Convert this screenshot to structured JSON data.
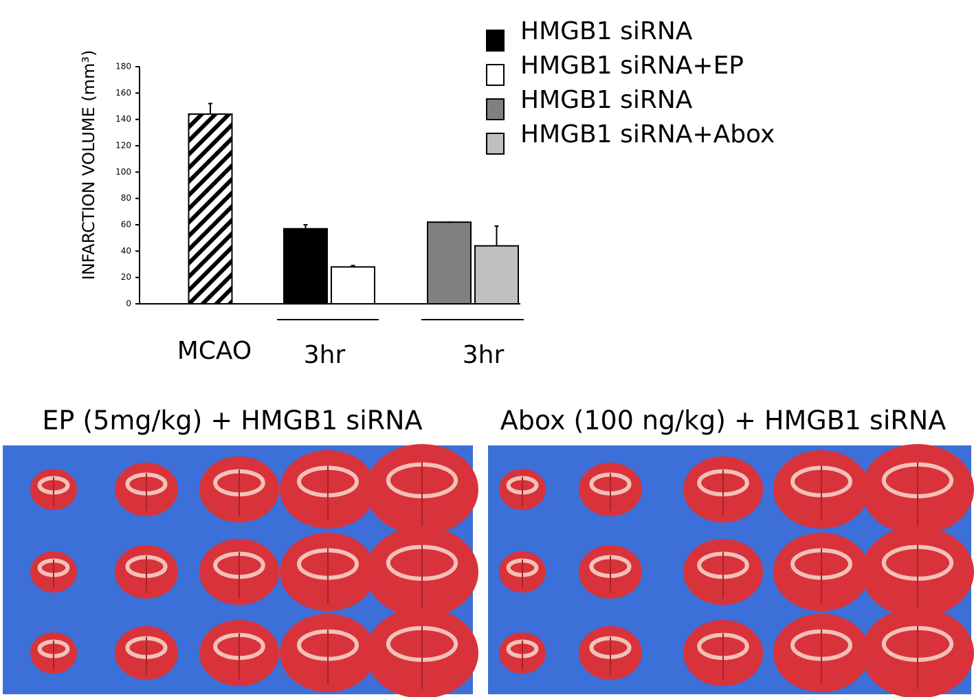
{
  "chart_data": {
    "type": "bar",
    "ylabel": "INFARCTION VOLUME (mm³)",
    "categories": [
      "MCAO",
      "3hr",
      "3hr"
    ],
    "ylim": [
      0,
      180
    ],
    "yticks": [
      0,
      20,
      40,
      60,
      80,
      100,
      120,
      140,
      160,
      180
    ],
    "control": {
      "color": "#000000",
      "pattern": "diagonal-hatch",
      "values": [
        144,
        null,
        null
      ],
      "errors": [
        8,
        null,
        null
      ]
    },
    "series": [
      {
        "name": "HMGB1 siRNA",
        "color": "#000000",
        "values": [
          null,
          57,
          null
        ],
        "errors": [
          null,
          3,
          null
        ]
      },
      {
        "name": "HMGB1 siRNA+EP",
        "color": "#ffffff",
        "values": [
          null,
          28,
          null
        ],
        "errors": [
          null,
          1,
          null
        ]
      },
      {
        "name": "HMGB1 siRNA",
        "color": "#808080",
        "values": [
          null,
          null,
          62
        ],
        "errors": [
          null,
          null,
          0
        ]
      },
      {
        "name": "HMGB1 siRNA+Abox",
        "color": "#c0c0c0",
        "values": [
          null,
          null,
          44
        ],
        "errors": [
          null,
          null,
          15
        ]
      }
    ]
  },
  "panels": [
    {
      "title": "EP (5mg/kg) + HMGB1 siRNA"
    },
    {
      "title": "Abox (100 ng/kg) + HMGB1 siRNA"
    }
  ]
}
